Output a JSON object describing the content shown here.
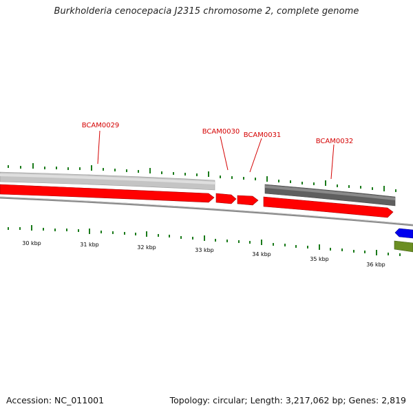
{
  "title": "Burkholderia cenocepacia J2315 chromosome 2, complete genome",
  "footer": {
    "accession": "Accession: NC_011001",
    "summary": "Topology: circular; Length: 3,217,062 bp; Genes: 2,819"
  },
  "colors": {
    "gene_label": "#d40000",
    "cds_forward": "#ff0000",
    "tick": "#1a7a1a",
    "backbone": "#8a8a8a",
    "feature_light": "#c4c4c4",
    "feature_dark": "#5f5f5f",
    "blue_feature": "#0000ee",
    "green_feature": "#6b8e23"
  },
  "gene_labels": [
    {
      "id": "g29",
      "text": "BCAM0029"
    },
    {
      "id": "g30",
      "text": "BCAM0030"
    },
    {
      "id": "g31",
      "text": "BCAM0031"
    },
    {
      "id": "g32",
      "text": "BCAM0032"
    }
  ],
  "scale_labels": [
    "30 kbp",
    "31 kbp",
    "32 kbp",
    "33 kbp",
    "34 kbp",
    "35 kbp",
    "36 kbp"
  ]
}
